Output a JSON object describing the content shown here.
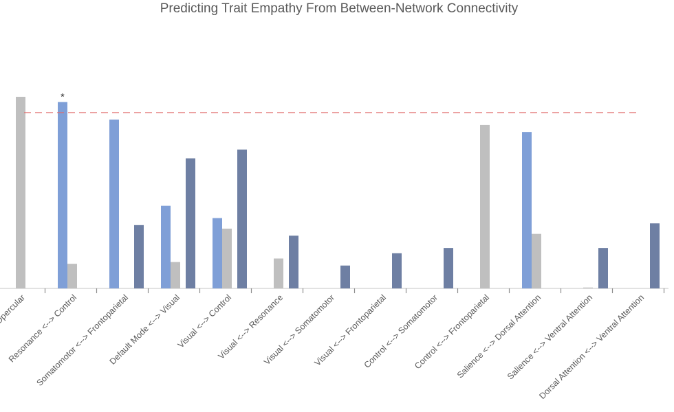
{
  "chart_data": {
    "type": "bar",
    "title": "Predicting Trait Empathy From Between-Network Connectivity",
    "xlabel": "",
    "ylabel": "",
    "categories": [
      "Opercular",
      "Resonance  <--> Control",
      "Somatomotor <--> Frontoparietal",
      "Default Mode <--> Visual",
      "Visual <--> Control",
      "Visual <--> Resonance",
      "Visual <--> Somatomotor",
      "Visual <--> Frontoparietal",
      "Control <--> Somatomotor",
      "Control <--> Frontoparietal",
      "Salience <--> Dorsal Attention",
      "Salience <--> Ventral Attention",
      "Dorsal Attention <--> Ventral Attention"
    ],
    "series": [
      {
        "color": "#7f9fd7",
        "values": [
          0,
          1.06,
          0.96,
          0.47,
          0.4,
          0,
          0,
          0,
          0,
          0,
          0.89,
          0,
          0
        ]
      },
      {
        "color": "#bfbfbf",
        "values": [
          1.09,
          0.14,
          0,
          0.15,
          0.34,
          0.17,
          0,
          0,
          0,
          0.93,
          0.31,
          0.005,
          0
        ]
      },
      {
        "color": "#6e7fa3",
        "values": [
          0,
          0,
          0.36,
          0.74,
          0.79,
          0.3,
          0.13,
          0.2,
          0.23,
          0,
          0,
          0.23,
          0.37
        ]
      }
    ],
    "threshold": {
      "value": 1.0,
      "color": "#e06b6b",
      "style": "dashed"
    },
    "annotations": [
      {
        "text": "*",
        "category_index": 1,
        "series_index": 0
      }
    ],
    "y_axis_shown": false,
    "grid": false,
    "legend": "none"
  }
}
